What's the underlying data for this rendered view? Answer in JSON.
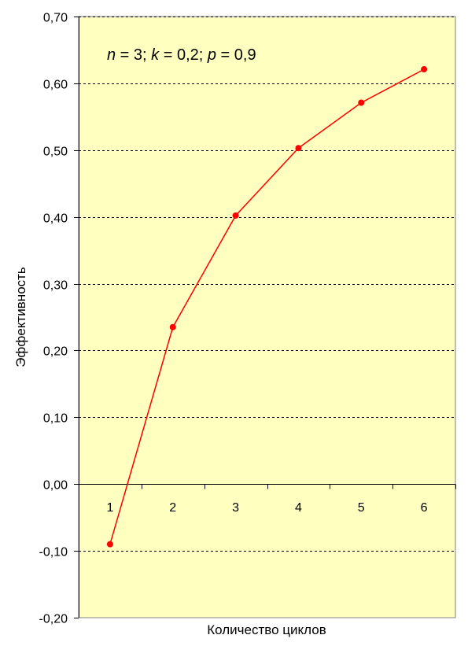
{
  "chart_data": {
    "type": "line",
    "annotation": {
      "n_label": "n",
      "n_value": " = 3; ",
      "k_label": "k",
      "k_value": " = 0,2; ",
      "p_label": "p",
      "p_value": " = 0,9"
    },
    "xlabel": "Количество циклов",
    "ylabel": "Эффективность",
    "categories": [
      "1",
      "2",
      "3",
      "4",
      "5",
      "6"
    ],
    "series": [
      {
        "values": [
          -0.09,
          0.235,
          0.402,
          0.503,
          0.571,
          0.621
        ]
      }
    ],
    "ylim": [
      -0.2,
      0.7
    ],
    "yticks": [
      "-0,20",
      "-0,10",
      "0,00",
      "0,10",
      "0,20",
      "0,30",
      "0,40",
      "0,50",
      "0,60",
      "0,70"
    ],
    "ytick_values": [
      -0.2,
      -0.1,
      0,
      0.1,
      0.2,
      0.3,
      0.4,
      0.5,
      0.6,
      0.7
    ],
    "grid": true,
    "colors": {
      "plot_background": "#ffffc0",
      "series": "#ff0000",
      "grid": "#000000"
    }
  }
}
